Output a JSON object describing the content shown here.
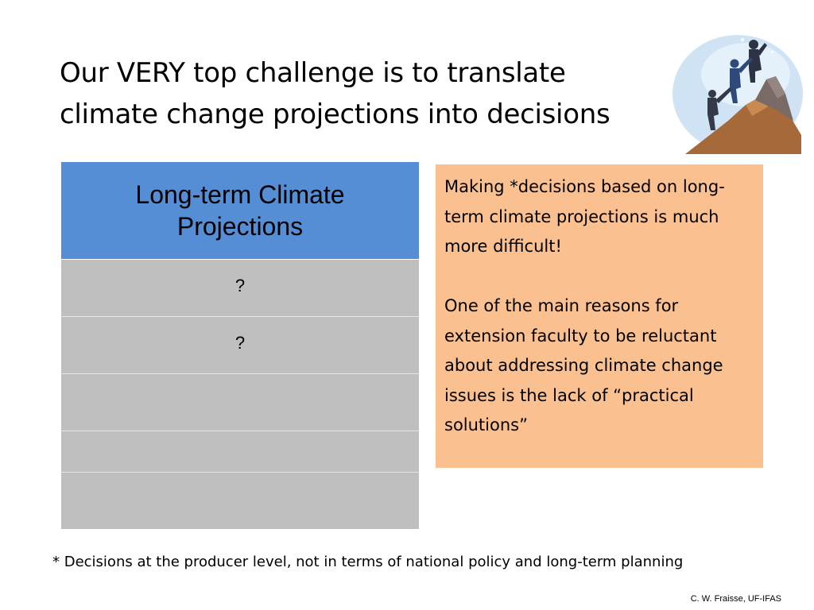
{
  "slide": {
    "title_lines": [
      "Our VERY top challenge is to translate",
      "climate change projections into decisions"
    ],
    "illustration": {
      "icon": "mountain-climbers-icon",
      "colors": {
        "sky": "#cfe3f5",
        "mountain": "#a6693a",
        "summit": "#7a6a66"
      }
    },
    "table": {
      "header_lines": [
        "Long-term Climate",
        "Projections"
      ],
      "rows": [
        "?",
        "?",
        "",
        "",
        ""
      ],
      "colors": {
        "header": "#558ed5",
        "rows": "#bfbfbf"
      }
    },
    "note_box": {
      "paragraphs": [
        "Making *decisions based on long-term climate projections is much more difficult!",
        "One of the main reasons for extension faculty to be reluctant about addressing climate change issues is the lack of “practical solutions”"
      ],
      "color": "#fac090"
    },
    "footnote": "* Decisions at the producer level, not in terms of national policy and long-term planning",
    "credit": "C. W. Fraisse, UF-IFAS"
  }
}
